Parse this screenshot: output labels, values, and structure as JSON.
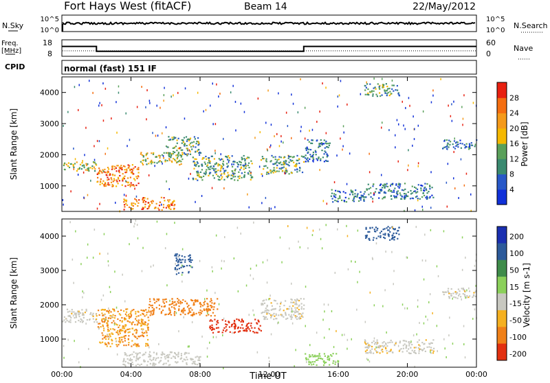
{
  "header": {
    "station": "Fort Hays West (fitACF)",
    "beam": "Beam 14",
    "date": "22/May/2012"
  },
  "panels": {
    "nsky": {
      "label": "N.Sky",
      "ticks": [
        "10^5",
        "10^0"
      ],
      "right_label": "N.Search",
      "right_ticks": [
        "10^5",
        "10^0"
      ]
    },
    "freq": {
      "label_line1": "Freq.",
      "label_line2": "[MHz]",
      "ticks": [
        "18",
        "8"
      ],
      "right_label": "Nave",
      "right_ticks": [
        "60",
        "0"
      ]
    },
    "cpid": {
      "label": "CPID",
      "text": "normal (fast) 151 IF"
    },
    "power": {
      "ylabel": "Slant Range [km]",
      "yticks": [
        "1000",
        "2000",
        "3000",
        "4000"
      ],
      "cbar_label": "Power [dB]",
      "cbar_ticks": [
        "4",
        "8",
        "12",
        "16",
        "20",
        "24",
        "28"
      ]
    },
    "velocity": {
      "ylabel": "Slant Range [km]",
      "yticks": [
        "1000",
        "2000",
        "3000",
        "4000"
      ],
      "cbar_label": "Velocity [m s-1]",
      "cbar_ticks": [
        "200",
        "100",
        "50",
        "15",
        "-15",
        "-50",
        "-100",
        "-200"
      ]
    }
  },
  "xaxis": {
    "label": "Time UT",
    "ticks": [
      "00:00",
      "04:00",
      "08:00",
      "12:00",
      "16:00",
      "20:00",
      "00:00"
    ]
  },
  "colors": {
    "power_scale": [
      "#1030d8",
      "#2858c8",
      "#3a8a70",
      "#5aa05a",
      "#f5b800",
      "#f59a1a",
      "#f56e10",
      "#e82010"
    ],
    "velocity_scale": [
      "#1a2fb0",
      "#2c5a9a",
      "#3f8c4a",
      "#8bd05a",
      "#c8c8c0",
      "#f5b020",
      "#f08018",
      "#e23010"
    ]
  },
  "chart_data": [
    {
      "type": "line",
      "name": "Freq",
      "x": [
        "00:00",
        "02:00",
        "02:00",
        "14:00",
        "14:00",
        "24:00"
      ],
      "y": [
        14,
        14,
        11,
        11,
        14,
        14
      ],
      "ylim": [
        8,
        18
      ],
      "xlim": [
        "00:00",
        "24:00"
      ]
    },
    {
      "type": "heatmap",
      "title": "Power",
      "xlim": [
        "00:00",
        "24:00"
      ],
      "ylim": [
        180,
        4500
      ],
      "regions": [
        {
          "t0": 0.0,
          "t1": 2.0,
          "r0": 1500,
          "r1": 1800,
          "power": 16
        },
        {
          "t0": 2.0,
          "t1": 4.5,
          "r0": 1000,
          "r1": 1700,
          "power": 24
        },
        {
          "t0": 3.5,
          "t1": 6.5,
          "r0": 250,
          "r1": 650,
          "power": 24
        },
        {
          "t0": 4.5,
          "t1": 7.0,
          "r0": 1700,
          "r1": 2100,
          "power": 16
        },
        {
          "t0": 6.0,
          "t1": 8.0,
          "r0": 2000,
          "r1": 2600,
          "power": 12
        },
        {
          "t0": 7.5,
          "t1": 11.0,
          "r0": 1200,
          "r1": 2000,
          "power": 12
        },
        {
          "t0": 11.5,
          "t1": 14.0,
          "r0": 1400,
          "r1": 2000,
          "power": 12
        },
        {
          "t0": 14.0,
          "t1": 15.5,
          "r0": 1800,
          "r1": 2500,
          "power": 8
        },
        {
          "t0": 15.5,
          "t1": 17.5,
          "r0": 500,
          "r1": 900,
          "power": 8
        },
        {
          "t0": 17.5,
          "t1": 21.5,
          "r0": 600,
          "r1": 1100,
          "power": 8
        },
        {
          "t0": 17.5,
          "t1": 19.5,
          "r0": 3900,
          "r1": 4300,
          "power": 12
        },
        {
          "t0": 22.0,
          "t1": 24.0,
          "r0": 2200,
          "r1": 2500,
          "power": 8
        }
      ]
    },
    {
      "type": "heatmap",
      "title": "Velocity",
      "xlim": [
        "00:00",
        "24:00"
      ],
      "ylim": [
        180,
        4500
      ],
      "regions": [
        {
          "t0": 0.0,
          "t1": 2.0,
          "r0": 1500,
          "r1": 1900,
          "velocity": -10
        },
        {
          "t0": 2.0,
          "t1": 5.0,
          "r0": 800,
          "r1": 1900,
          "velocity": -50
        },
        {
          "t0": 3.5,
          "t1": 8.0,
          "r0": 250,
          "r1": 650,
          "velocity": -5
        },
        {
          "t0": 5.0,
          "t1": 9.0,
          "r0": 1700,
          "r1": 2200,
          "velocity": -60
        },
        {
          "t0": 6.5,
          "t1": 7.5,
          "r0": 2900,
          "r1": 3500,
          "velocity": 150
        },
        {
          "t0": 8.5,
          "t1": 11.5,
          "r0": 1200,
          "r1": 1600,
          "velocity": -200
        },
        {
          "t0": 11.5,
          "t1": 14.0,
          "r0": 1600,
          "r1": 2200,
          "velocity": -10
        },
        {
          "t0": 14.0,
          "t1": 16.0,
          "r0": 250,
          "r1": 600,
          "velocity": 40
        },
        {
          "t0": 17.5,
          "t1": 21.5,
          "r0": 600,
          "r1": 1000,
          "velocity": -10
        },
        {
          "t0": 17.5,
          "t1": 19.5,
          "r0": 3900,
          "r1": 4300,
          "velocity": 180
        },
        {
          "t0": 22.0,
          "t1": 24.0,
          "r0": 2200,
          "r1": 2500,
          "velocity": -10
        }
      ]
    }
  ]
}
